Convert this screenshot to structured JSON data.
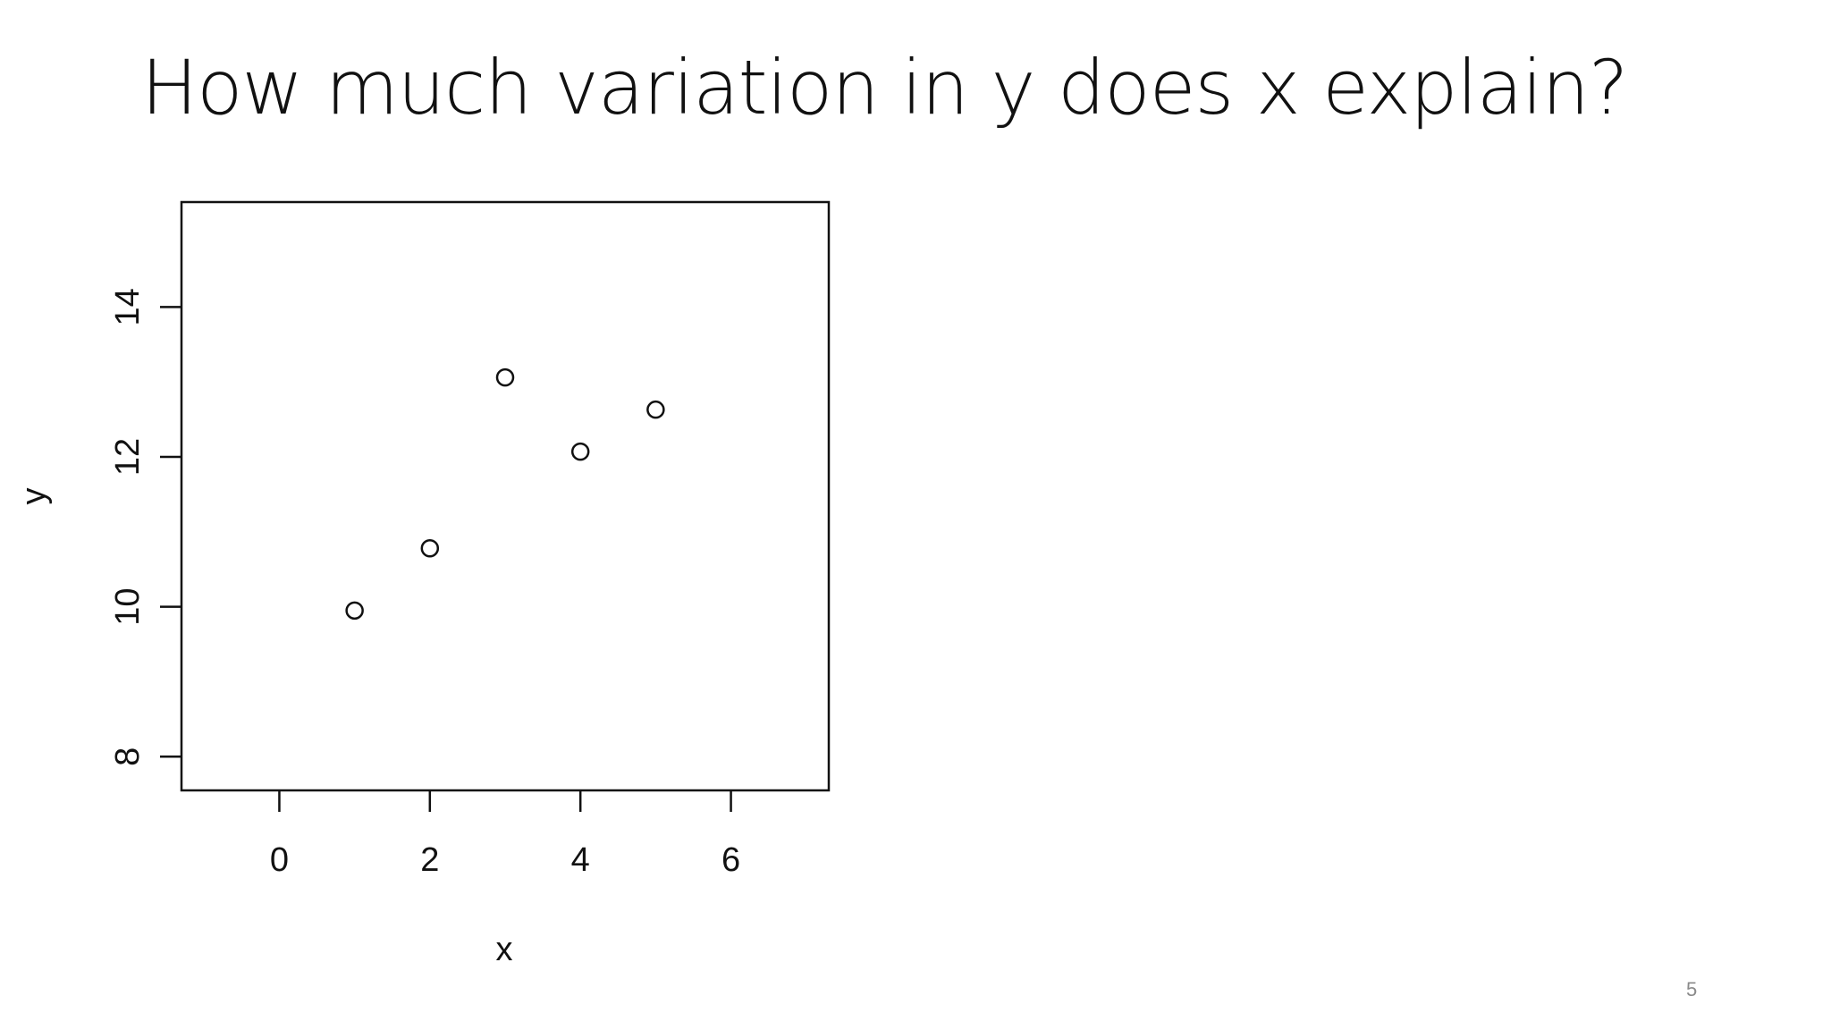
{
  "slide": {
    "title": "How much variation in y does x explain?",
    "page_number": "5"
  },
  "chart_data": {
    "type": "scatter",
    "title": "",
    "xlabel": "x",
    "ylabel": "y",
    "x": [
      1,
      2,
      3,
      4,
      5
    ],
    "y": [
      9.95,
      10.78,
      13.06,
      12.07,
      12.63
    ],
    "xlim": [
      -1.3,
      7.3
    ],
    "ylim": [
      7.55,
      15.4
    ],
    "xticks": [
      0,
      2,
      4,
      6
    ],
    "yticks": [
      8,
      10,
      12,
      14
    ],
    "xtick_labels": [
      "0",
      "2",
      "4",
      "6"
    ],
    "ytick_labels": [
      "8",
      "10",
      "12",
      "14"
    ],
    "marker": "open-circle",
    "grid": false,
    "legend": "none",
    "colors": {
      "ink": "#111111",
      "background": "#ffffff"
    }
  }
}
